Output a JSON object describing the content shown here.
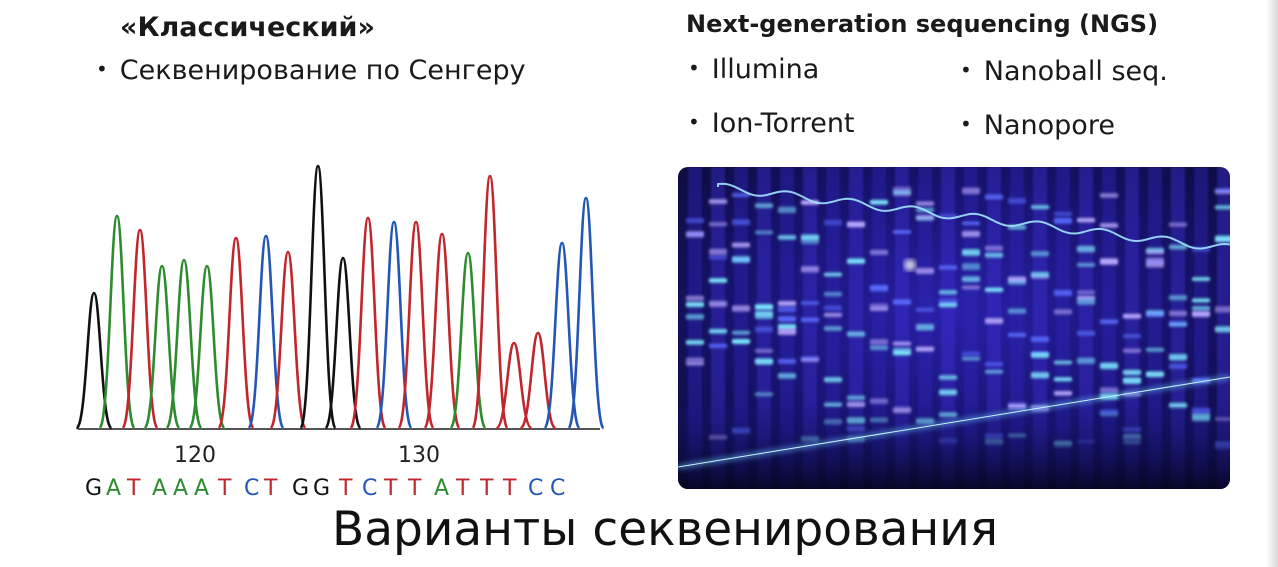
{
  "left": {
    "heading": "«Классический»",
    "bullet": "Секвенирование по Сенгеру"
  },
  "right": {
    "heading": "Next-generation sequencing (NGS)",
    "items": [
      "Illumina",
      "Nanoball seq.",
      "Ion-Torrent",
      "Nanopore"
    ]
  },
  "chromatogram": {
    "positions": [
      "120",
      "130"
    ],
    "bases": [
      "G",
      "A",
      "T",
      "A",
      "A",
      "A",
      "T",
      "C",
      "T",
      "G",
      "G",
      "T",
      "C",
      "T",
      "T",
      "A",
      "T",
      "T",
      "T",
      "C",
      "C"
    ],
    "colors": {
      "A": "#2e8b2e",
      "T": "#c0262b",
      "C": "#2457b5",
      "G": "#111111"
    }
  },
  "title": "Варианты секвенирования"
}
